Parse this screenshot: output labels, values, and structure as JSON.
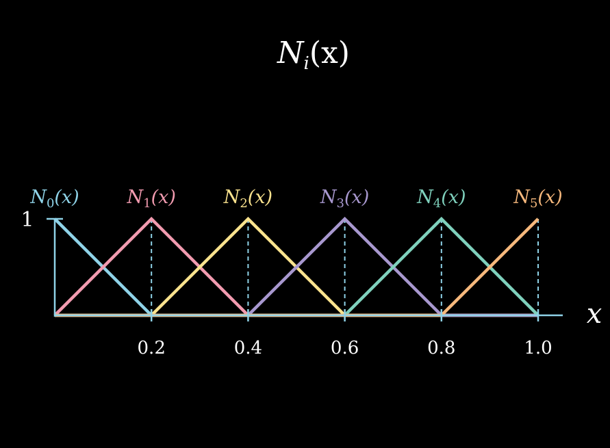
{
  "chart_data": {
    "type": "line",
    "title": {
      "main": "N",
      "sub": "i",
      "suffix": "(x)"
    },
    "xlabel": "x",
    "ylabel": "",
    "xlim": [
      0,
      1.0
    ],
    "ylim": [
      0,
      1
    ],
    "x_ticks": [
      {
        "value": 0.2,
        "label": "0.2"
      },
      {
        "value": 0.4,
        "label": "0.4"
      },
      {
        "value": 0.6,
        "label": "0.6"
      },
      {
        "value": 0.8,
        "label": "0.8"
      },
      {
        "value": 1.0,
        "label": "1.0"
      }
    ],
    "y_ticks": [
      {
        "value": 1,
        "label": "1"
      }
    ],
    "axis_color": "#8fd3e8",
    "grid": false,
    "series": [
      {
        "name": "N0(x)",
        "label_main": "N",
        "label_sub": "0",
        "label_suffix": "(x)",
        "color": "#8fd3e8",
        "x": [
          0.0,
          0.2,
          0.4,
          0.6,
          0.8,
          1.0
        ],
        "y": [
          1,
          0,
          0,
          0,
          0,
          0
        ]
      },
      {
        "name": "N1(x)",
        "label_main": "N",
        "label_sub": "1",
        "label_suffix": "(x)",
        "color": "#f29bb0",
        "x": [
          0.0,
          0.2,
          0.4,
          0.6,
          0.8,
          1.0
        ],
        "y": [
          0,
          1,
          0,
          0,
          0,
          0
        ]
      },
      {
        "name": "N2(x)",
        "label_main": "N",
        "label_sub": "2",
        "label_suffix": "(x)",
        "color": "#fbe38e",
        "x": [
          0.0,
          0.2,
          0.4,
          0.6,
          0.8,
          1.0
        ],
        "y": [
          0,
          0,
          1,
          0,
          0,
          0
        ]
      },
      {
        "name": "N3(x)",
        "label_main": "N",
        "label_sub": "3",
        "label_suffix": "(x)",
        "color": "#a898cf",
        "x": [
          0.0,
          0.2,
          0.4,
          0.6,
          0.8,
          1.0
        ],
        "y": [
          0,
          0,
          0,
          1,
          0,
          0
        ]
      },
      {
        "name": "N4(x)",
        "label_main": "N",
        "label_sub": "4",
        "label_suffix": "(x)",
        "color": "#7fd1bd",
        "x": [
          0.0,
          0.2,
          0.4,
          0.6,
          0.8,
          1.0
        ],
        "y": [
          0,
          0,
          0,
          0,
          1,
          0
        ]
      },
      {
        "name": "N5(x)",
        "label_main": "N",
        "label_sub": "5",
        "label_suffix": "(x)",
        "color": "#f7b97d",
        "x": [
          0.0,
          0.2,
          0.4,
          0.6,
          0.8,
          1.0
        ],
        "y": [
          0,
          0,
          0,
          0,
          0,
          1
        ]
      }
    ]
  }
}
